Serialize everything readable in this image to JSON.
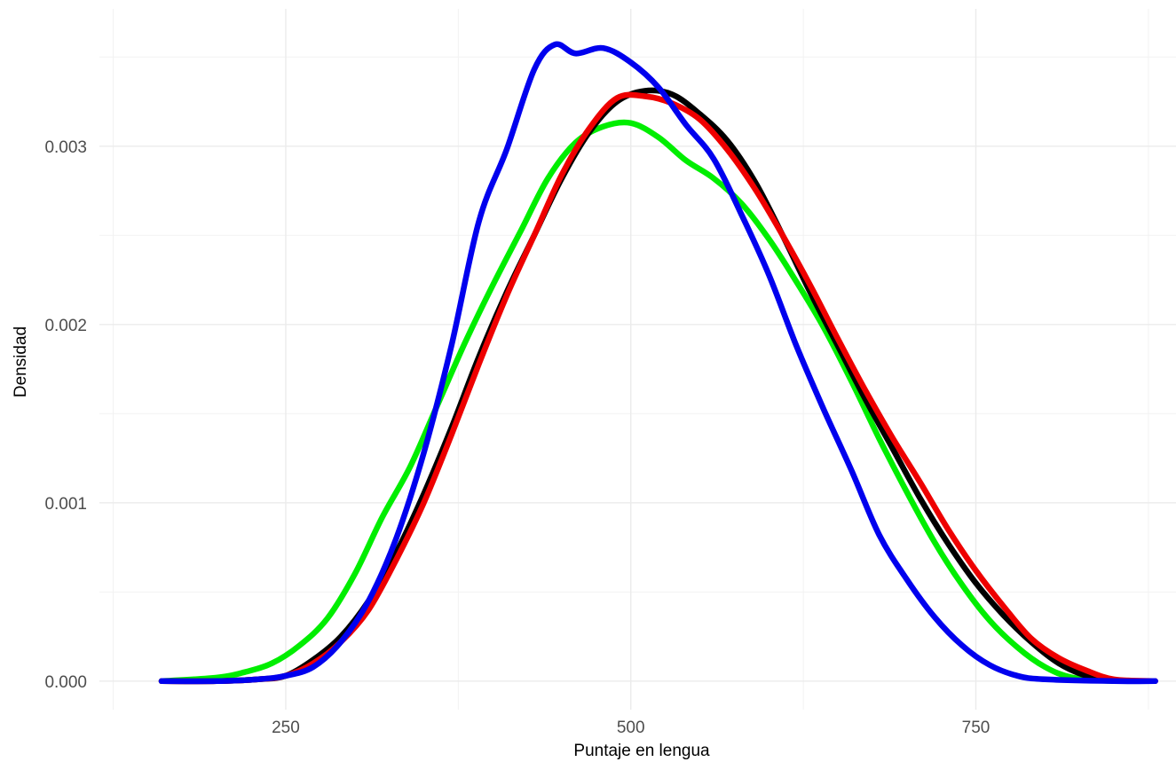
{
  "chart_data": {
    "type": "line",
    "title": "",
    "xlabel": "Puntaje en lengua",
    "ylabel": "Densidad",
    "xlim": [
      115,
      895
    ],
    "ylim": [
      -0.00016,
      0.00377
    ],
    "x_ticks": [
      250,
      500,
      750
    ],
    "x_tick_labels": [
      "250",
      "500",
      "750"
    ],
    "x_minor_ticks": [
      125,
      375,
      625,
      875
    ],
    "y_ticks": [
      0.0,
      0.001,
      0.002,
      0.003
    ],
    "y_tick_labels": [
      "0.000",
      "0.001",
      "0.002",
      "0.003"
    ],
    "y_minor_ticks": [
      0.0005,
      0.0015,
      0.0025,
      0.0035
    ],
    "grid": true,
    "legend": "none",
    "series": [
      {
        "color": "#00ee00",
        "points": [
          [
            160,
            0.0
          ],
          [
            200,
            2e-05
          ],
          [
            220,
            5e-05
          ],
          [
            240,
            0.0001
          ],
          [
            260,
            0.0002
          ],
          [
            280,
            0.00035
          ],
          [
            300,
            0.0006
          ],
          [
            320,
            0.00092
          ],
          [
            340,
            0.0012
          ],
          [
            360,
            0.00155
          ],
          [
            380,
            0.0019
          ],
          [
            400,
            0.00222
          ],
          [
            420,
            0.00252
          ],
          [
            440,
            0.00282
          ],
          [
            460,
            0.00302
          ],
          [
            480,
            0.00311
          ],
          [
            500,
            0.00313
          ],
          [
            520,
            0.00305
          ],
          [
            540,
            0.00292
          ],
          [
            560,
            0.00282
          ],
          [
            580,
            0.00268
          ],
          [
            600,
            0.00248
          ],
          [
            620,
            0.00224
          ],
          [
            640,
            0.00198
          ],
          [
            660,
            0.00168
          ],
          [
            680,
            0.00136
          ],
          [
            700,
            0.00106
          ],
          [
            720,
            0.00078
          ],
          [
            740,
            0.00054
          ],
          [
            760,
            0.00034
          ],
          [
            780,
            0.00019
          ],
          [
            800,
            8e-05
          ],
          [
            820,
            2e-05
          ],
          [
            850,
            0.0
          ]
        ]
      },
      {
        "color": "#000000",
        "points": [
          [
            160,
            0.0
          ],
          [
            200,
            0.0
          ],
          [
            230,
            1e-05
          ],
          [
            250,
            3e-05
          ],
          [
            270,
            0.00012
          ],
          [
            290,
            0.00025
          ],
          [
            310,
            0.00045
          ],
          [
            330,
            0.00072
          ],
          [
            350,
            0.00105
          ],
          [
            370,
            0.00142
          ],
          [
            390,
            0.00182
          ],
          [
            410,
            0.00218
          ],
          [
            430,
            0.0025
          ],
          [
            450,
            0.00282
          ],
          [
            470,
            0.00308
          ],
          [
            490,
            0.00325
          ],
          [
            510,
            0.00331
          ],
          [
            530,
            0.00329
          ],
          [
            550,
            0.00318
          ],
          [
            570,
            0.00303
          ],
          [
            590,
            0.0028
          ],
          [
            610,
            0.0025
          ],
          [
            630,
            0.00218
          ],
          [
            650,
            0.00188
          ],
          [
            670,
            0.00158
          ],
          [
            690,
            0.0013
          ],
          [
            710,
            0.00102
          ],
          [
            730,
            0.00077
          ],
          [
            750,
            0.00055
          ],
          [
            770,
            0.00037
          ],
          [
            790,
            0.00022
          ],
          [
            810,
            0.0001
          ],
          [
            830,
            3e-05
          ],
          [
            850,
            0.0
          ]
        ]
      },
      {
        "color": "#ee0000",
        "points": [
          [
            160,
            0.0
          ],
          [
            200,
            0.0
          ],
          [
            230,
            1e-05
          ],
          [
            250,
            3e-05
          ],
          [
            270,
            0.0001
          ],
          [
            290,
            0.00022
          ],
          [
            310,
            0.0004
          ],
          [
            330,
            0.00068
          ],
          [
            350,
            0.001
          ],
          [
            370,
            0.00138
          ],
          [
            390,
            0.00178
          ],
          [
            410,
            0.00216
          ],
          [
            430,
            0.0025
          ],
          [
            450,
            0.00284
          ],
          [
            470,
            0.0031
          ],
          [
            490,
            0.00327
          ],
          [
            510,
            0.00328
          ],
          [
            530,
            0.00324
          ],
          [
            550,
            0.00315
          ],
          [
            570,
            0.00298
          ],
          [
            590,
            0.00276
          ],
          [
            610,
            0.0025
          ],
          [
            630,
            0.00222
          ],
          [
            650,
            0.00192
          ],
          [
            670,
            0.00163
          ],
          [
            690,
            0.00136
          ],
          [
            710,
            0.00111
          ],
          [
            730,
            0.00085
          ],
          [
            750,
            0.00062
          ],
          [
            770,
            0.00042
          ],
          [
            790,
            0.00024
          ],
          [
            810,
            0.00013
          ],
          [
            830,
            6e-05
          ],
          [
            850,
            1e-05
          ],
          [
            880,
            0.0
          ]
        ]
      },
      {
        "color": "#0000ee",
        "points": [
          [
            160,
            0.0
          ],
          [
            200,
            0.0
          ],
          [
            230,
            1e-05
          ],
          [
            250,
            3e-05
          ],
          [
            270,
            8e-05
          ],
          [
            290,
            0.00022
          ],
          [
            310,
            0.00045
          ],
          [
            330,
            0.0008
          ],
          [
            350,
            0.00128
          ],
          [
            370,
            0.00188
          ],
          [
            390,
            0.00258
          ],
          [
            410,
            0.00298
          ],
          [
            430,
            0.00343
          ],
          [
            445,
            0.00357
          ],
          [
            460,
            0.00352
          ],
          [
            480,
            0.00355
          ],
          [
            500,
            0.00347
          ],
          [
            520,
            0.00333
          ],
          [
            540,
            0.00312
          ],
          [
            560,
            0.00293
          ],
          [
            580,
            0.00262
          ],
          [
            600,
            0.00228
          ],
          [
            620,
            0.00188
          ],
          [
            640,
            0.00152
          ],
          [
            660,
            0.00118
          ],
          [
            680,
            0.00082
          ],
          [
            700,
            0.00057
          ],
          [
            720,
            0.00036
          ],
          [
            740,
            0.0002
          ],
          [
            760,
            9e-05
          ],
          [
            780,
            3e-05
          ],
          [
            800,
            1e-05
          ],
          [
            850,
            0.0
          ],
          [
            880,
            0.0
          ]
        ]
      }
    ]
  }
}
